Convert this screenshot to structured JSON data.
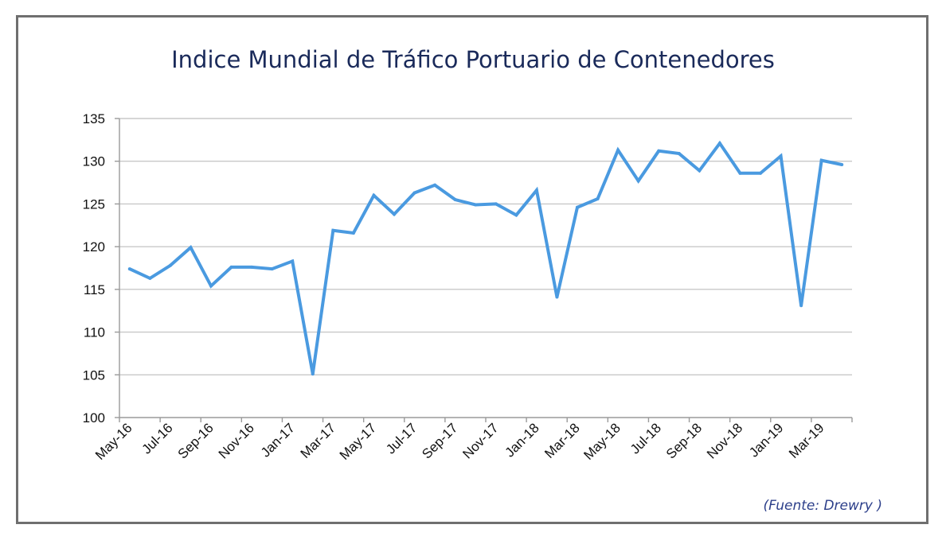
{
  "title": "Indice Mundial de Tráfico Portuario de Contenedores",
  "source": "(Fuente: Drewry )",
  "colors": {
    "line": "#4a9ae0",
    "title": "#1a2a5a",
    "source": "#2c3f8a",
    "grid": "#c8c8c8",
    "frame": "#6f6f6f"
  },
  "chart_data": {
    "type": "line",
    "title": "Indice Mundial de Tráfico Portuario de Contenedores",
    "xlabel": "",
    "ylabel": "",
    "ylim": [
      100,
      135
    ],
    "yticks": [
      100,
      105,
      110,
      115,
      120,
      125,
      130,
      135
    ],
    "grid": true,
    "legend": "none",
    "x": [
      "May-16",
      "Jun-16",
      "Jul-16",
      "Aug-16",
      "Sep-16",
      "Oct-16",
      "Nov-16",
      "Dec-16",
      "Jan-17",
      "Feb-17",
      "Mar-17",
      "Apr-17",
      "May-17",
      "Jun-17",
      "Jul-17",
      "Aug-17",
      "Sep-17",
      "Oct-17",
      "Nov-17",
      "Dec-17",
      "Jan-18",
      "Feb-18",
      "Mar-18",
      "Apr-18",
      "May-18",
      "Jun-18",
      "Jul-18",
      "Aug-18",
      "Sep-18",
      "Oct-18",
      "Nov-18",
      "Dec-18",
      "Jan-19",
      "Feb-19",
      "Mar-19",
      "Apr-19"
    ],
    "xtick_labels": [
      "May-16",
      "Jul-16",
      "Sep-16",
      "Nov-16",
      "Jan-17",
      "Mar-17",
      "May-17",
      "Jul-17",
      "Sep-17",
      "Nov-17",
      "Jan-18",
      "Mar-18",
      "May-18",
      "Jul-18",
      "Sep-18",
      "Nov-18",
      "Jan-19",
      "Mar-19"
    ],
    "series": [
      {
        "values": [
          117.4,
          116.3,
          117.8,
          119.9,
          115.4,
          117.6,
          117.6,
          117.4,
          118.3,
          105.1,
          121.9,
          121.6,
          126.0,
          123.8,
          126.3,
          127.2,
          125.5,
          124.9,
          125.0,
          123.7,
          126.6,
          114.1,
          124.6,
          125.6,
          131.3,
          127.7,
          131.2,
          130.9,
          128.9,
          132.1,
          128.6,
          128.6,
          130.6,
          113.1,
          130.1,
          129.6
        ]
      }
    ]
  }
}
